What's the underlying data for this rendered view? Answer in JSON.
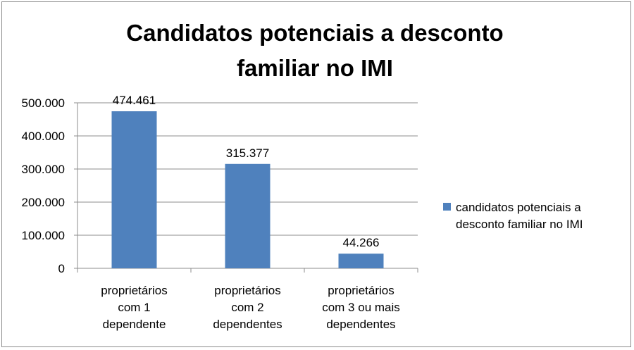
{
  "chart_data": {
    "type": "bar",
    "title_lines": [
      "Candidatos potenciais a desconto",
      "familiar no IMI"
    ],
    "categories": [
      [
        "proprietários",
        "com 1",
        "dependente"
      ],
      [
        "proprietários",
        "com 2",
        "dependentes"
      ],
      [
        "proprietários",
        "com 3 ou mais",
        "dependentes"
      ]
    ],
    "series": [
      {
        "name": "candidatos potenciais a desconto familiar no IMI",
        "name_lines": [
          "candidatos potenciais a",
          "desconto familiar no IMI"
        ],
        "values": [
          474461,
          315377,
          44266
        ],
        "labels": [
          "474.461",
          "315.377",
          "44.266"
        ],
        "color": "#4f81bd"
      }
    ],
    "yticks": [
      0,
      100000,
      200000,
      300000,
      400000,
      500000
    ],
    "ytick_labels": [
      "0",
      "100.000",
      "200.000",
      "300.000",
      "400.000",
      "500.000"
    ],
    "ylim": [
      0,
      500000
    ],
    "grid": true,
    "legend_position": "right"
  }
}
